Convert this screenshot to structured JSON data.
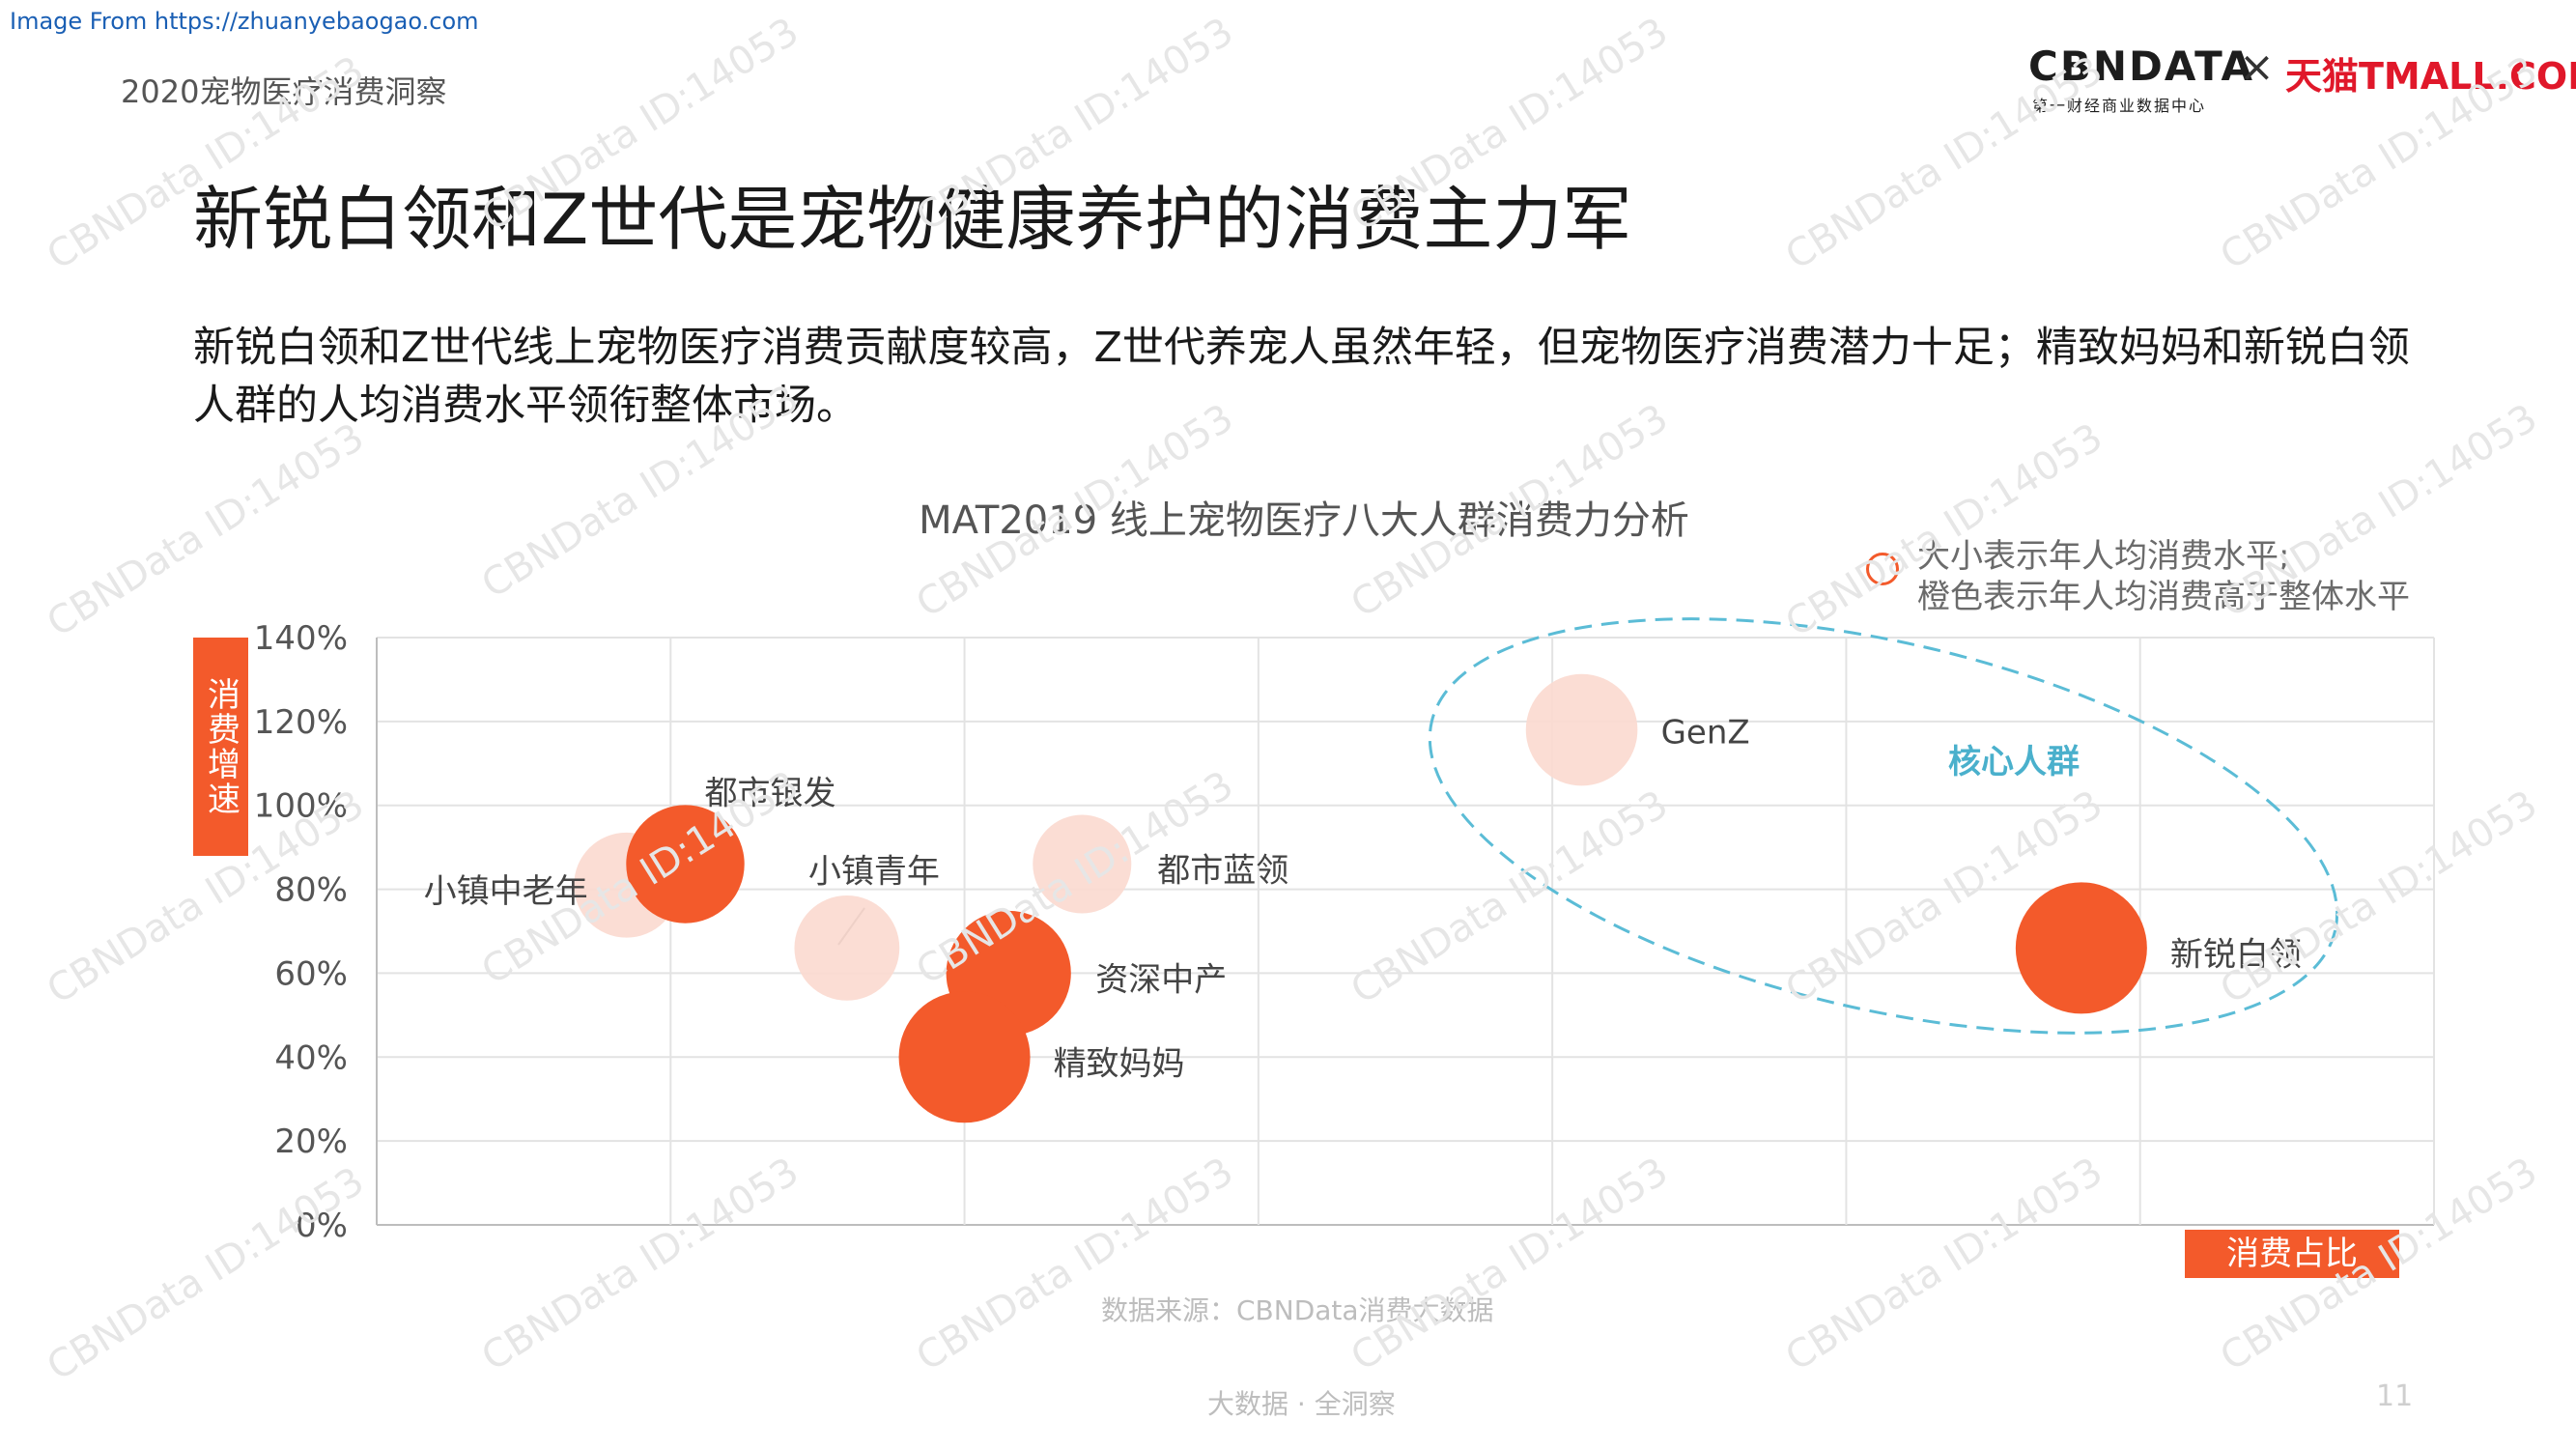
{
  "header": {
    "image_from": "Image From https://zhuanyebaogao.com",
    "report_title": "2020宠物医疗消费洞察",
    "logo_cbndata": "CBNDATA",
    "logo_cbndata_sub": "第一财经商业数据中心",
    "logo_x": "×",
    "logo_tmall": "天猫TMALL.COM"
  },
  "headline": "新锐白领和Z世代是宠物健康养护的消费主力军",
  "summary": "新锐白领和Z世代线上宠物医疗消费贡献度较高，Z世代养宠人虽然年轻，但宠物医疗消费潜力十足；精致妈妈和新锐白领人群的人均消费水平领衔整体市场。",
  "legend": {
    "line1": "大小表示年人均消费水平;",
    "line2": "橙色表示年人均消费高于整体水平"
  },
  "axis_badges": {
    "y": "消费增速",
    "x": "消费占比"
  },
  "source": "数据来源：CBNData消费大数据",
  "footer": "大数据 · 全洞察",
  "page_number": "11",
  "watermark_text": "CBNData ID:14053",
  "colors": {
    "accent": "#f35a2b",
    "above_average": "#f35a2b",
    "below_average": "#fbd9cf",
    "highlight_ellipse": "#5bbcd6"
  },
  "chart_data": {
    "type": "scatter",
    "title": "MAT2019 线上宠物医疗八大人群消费力分析",
    "xlabel": "消费占比",
    "ylabel": "消费增速",
    "x_tick_labels_shown": false,
    "ylim": [
      0,
      140
    ],
    "y_ticks": [
      "0%",
      "20%",
      "40%",
      "60%",
      "80%",
      "100%",
      "120%",
      "140%"
    ],
    "xlim": [
      0,
      7
    ],
    "grid": true,
    "annotation": "核心人群",
    "points": [
      {
        "name": "小镇中老年",
        "x": 0.85,
        "y": 81,
        "size": 32,
        "above_average": false
      },
      {
        "name": "都市银发",
        "x": 1.05,
        "y": 86,
        "size": 36,
        "above_average": true
      },
      {
        "name": "小镇青年",
        "x": 1.6,
        "y": 66,
        "size": 32,
        "above_average": false
      },
      {
        "name": "资深中产",
        "x": 2.15,
        "y": 60,
        "size": 38,
        "above_average": true
      },
      {
        "name": "精致妈妈",
        "x": 2.0,
        "y": 40,
        "size": 40,
        "above_average": true
      },
      {
        "name": "都市蓝领",
        "x": 2.4,
        "y": 86,
        "size": 30,
        "above_average": false
      },
      {
        "name": "GenZ",
        "x": 4.1,
        "y": 118,
        "size": 34,
        "above_average": false
      },
      {
        "name": "新锐白领",
        "x": 5.8,
        "y": 66,
        "size": 40,
        "above_average": true
      }
    ]
  }
}
